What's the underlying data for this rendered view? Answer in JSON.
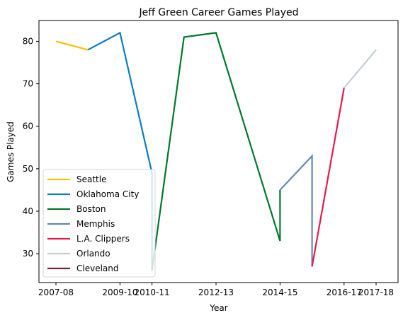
{
  "chart_data": {
    "type": "line",
    "title": "Jeff Green  Career Games Played",
    "xlabel": "Year",
    "ylabel": "Games Played",
    "x_tick_labels": [
      "2007-08",
      "2009-10",
      "2010-11",
      "2012-13",
      "2014-15",
      "2016-17",
      "2017-18"
    ],
    "y_ticks": [
      30,
      40,
      50,
      60,
      70,
      80
    ],
    "ylim": [
      23.2,
      84.9
    ],
    "legend_position": "lower-left",
    "grid": false,
    "series": [
      {
        "name": "Seattle",
        "color": "#f6c400",
        "points": [
          {
            "x": "2007-08",
            "y": 80
          },
          {
            "x": "2008-09",
            "y": 78
          }
        ]
      },
      {
        "name": "Oklahoma City",
        "color": "#0a7dc4",
        "points": [
          {
            "x": "2008-09",
            "y": 78
          },
          {
            "x": "2009-10",
            "y": 82
          },
          {
            "x": "2010-11",
            "y": 49
          },
          {
            "x": "2010-11",
            "y": 26
          }
        ]
      },
      {
        "name": "Boston",
        "color": "#00782f",
        "points": [
          {
            "x": "2010-11",
            "y": 26
          },
          {
            "x": "2011-12",
            "y": 81
          },
          {
            "x": "2012-13",
            "y": 82
          },
          {
            "x": "2014-15",
            "y": 33
          },
          {
            "x": "2014-15",
            "y": 45
          }
        ]
      },
      {
        "name": "Memphis",
        "color": "#6189b9",
        "points": [
          {
            "x": "2014-15",
            "y": 45
          },
          {
            "x": "2015-16",
            "y": 53
          },
          {
            "x": "2015-16",
            "y": 27
          }
        ]
      },
      {
        "name": "L.A. Clippers",
        "color": "#e31b4d",
        "points": [
          {
            "x": "2015-16",
            "y": 27
          },
          {
            "x": "2016-17",
            "y": 69
          }
        ]
      },
      {
        "name": "Orlando",
        "color": "#c4ced4",
        "points": [
          {
            "x": "2016-17",
            "y": 69
          },
          {
            "x": "2017-18",
            "y": 78
          }
        ]
      },
      {
        "name": "Cleveland",
        "color": "#6f2639",
        "points": []
      }
    ]
  }
}
